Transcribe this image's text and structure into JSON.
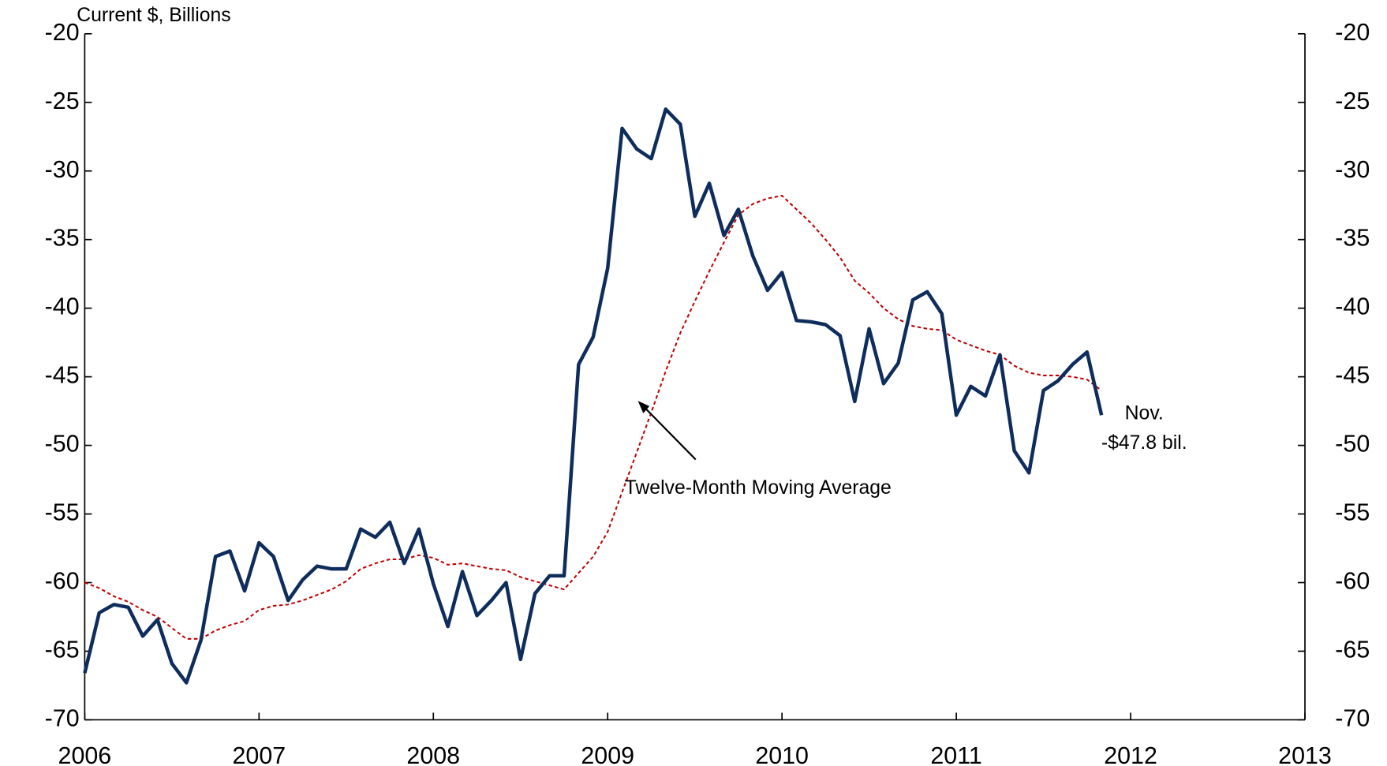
{
  "chart_data": {
    "type": "line",
    "y_label": "Current $, Billions",
    "x": [
      2006,
      2006.083,
      2006.167,
      2006.25,
      2006.333,
      2006.417,
      2006.5,
      2006.583,
      2006.667,
      2006.75,
      2006.833,
      2006.917,
      2007,
      2007.083,
      2007.167,
      2007.25,
      2007.333,
      2007.417,
      2007.5,
      2007.583,
      2007.667,
      2007.75,
      2007.833,
      2007.917,
      2008,
      2008.083,
      2008.167,
      2008.25,
      2008.333,
      2008.417,
      2008.5,
      2008.583,
      2008.667,
      2008.75,
      2008.833,
      2008.917,
      2009,
      2009.083,
      2009.167,
      2009.25,
      2009.333,
      2009.417,
      2009.5,
      2009.583,
      2009.667,
      2009.75,
      2009.833,
      2009.917,
      2010,
      2010.083,
      2010.167,
      2010.25,
      2010.333,
      2010.417,
      2010.5,
      2010.583,
      2010.667,
      2010.75,
      2010.833,
      2010.917,
      2011,
      2011.083,
      2011.167,
      2011.25,
      2011.333,
      2011.417,
      2011.5,
      2011.583,
      2011.667,
      2011.75,
      2011.833
    ],
    "series": [
      {
        "color": "#0f2d5c",
        "values": [
          -66.6,
          -62.2,
          -61.6,
          -61.8,
          -63.9,
          -62.7,
          -65.9,
          -67.3,
          -64.2,
          -58.1,
          -57.7,
          -60.6,
          -57.1,
          -58.1,
          -61.3,
          -59.8,
          -58.8,
          -59.0,
          -59.0,
          -56.1,
          -56.7,
          -55.6,
          -58.6,
          -56.1,
          -60.1,
          -63.2,
          -59.2,
          -62.4,
          -61.3,
          -60.0,
          -65.6,
          -60.8,
          -59.5,
          -59.5,
          -44.1,
          -42.1,
          -37.1,
          -26.9,
          -28.4,
          -29.1,
          -25.5,
          -26.6,
          -33.3,
          -30.9,
          -34.7,
          -32.8,
          -36.2,
          -38.7,
          -37.4,
          -40.9,
          -41.0,
          -41.2,
          -42.0,
          -46.8,
          -41.5,
          -45.5,
          -44.0,
          -39.4,
          -38.8,
          -40.4,
          -47.8,
          -45.7,
          -46.4,
          -43.4,
          -50.4,
          -52.0,
          -46.0,
          -45.3,
          -44.1,
          -43.2,
          -47.8
        ]
      },
      {
        "color": "#c00000",
        "dashed": true,
        "values": [
          -60.0,
          -60.4,
          -61.0,
          -61.4,
          -62.0,
          -62.5,
          -63.3,
          -64.1,
          -64.1,
          -63.5,
          -63.1,
          -62.8,
          -62.0,
          -61.7,
          -61.6,
          -61.3,
          -60.9,
          -60.5,
          -59.9,
          -59.0,
          -58.6,
          -58.3,
          -58.3,
          -58.0,
          -58.2,
          -58.7,
          -58.6,
          -58.8,
          -59.0,
          -59.1,
          -59.6,
          -59.9,
          -60.2,
          -60.5,
          -59.3,
          -58.1,
          -56.3,
          -53.4,
          -50.5,
          -47.6,
          -44.6,
          -41.8,
          -39.5,
          -37.3,
          -35.2,
          -33.2,
          -32.4,
          -32.0,
          -31.8,
          -32.8,
          -33.8,
          -35.0,
          -36.3,
          -38.0,
          -38.9,
          -40.0,
          -40.8,
          -41.3,
          -41.5,
          -41.6,
          -42.3,
          -42.7,
          -43.1,
          -43.4,
          -44.2,
          -44.7,
          -44.9,
          -44.9,
          -45.0,
          -45.2,
          -46.0
        ]
      }
    ],
    "xlim": [
      2006,
      2013
    ],
    "xticks": [
      2006,
      2007,
      2008,
      2009,
      2010,
      2011,
      2012,
      2013
    ],
    "ylim": [
      -70,
      -20
    ],
    "yticks": [
      -70,
      -65,
      -60,
      -55,
      -50,
      -45,
      -40,
      -35,
      -30,
      -25,
      -20
    ],
    "y2lim": [
      -70,
      -20
    ],
    "y2ticks": [
      -70,
      -65,
      -60,
      -55,
      -50,
      -45,
      -40,
      -35,
      -30,
      -25,
      -20
    ],
    "annotations": [
      {
        "text": "Twelve-Month Moving Average",
        "x": 2009.25,
        "y": -50.9
      },
      {
        "text": "Nov.",
        "x": 2011.833,
        "y": -47.8
      },
      {
        "text": "-$47.8 bil.",
        "x": 2011.833,
        "y": -47.8
      }
    ]
  }
}
